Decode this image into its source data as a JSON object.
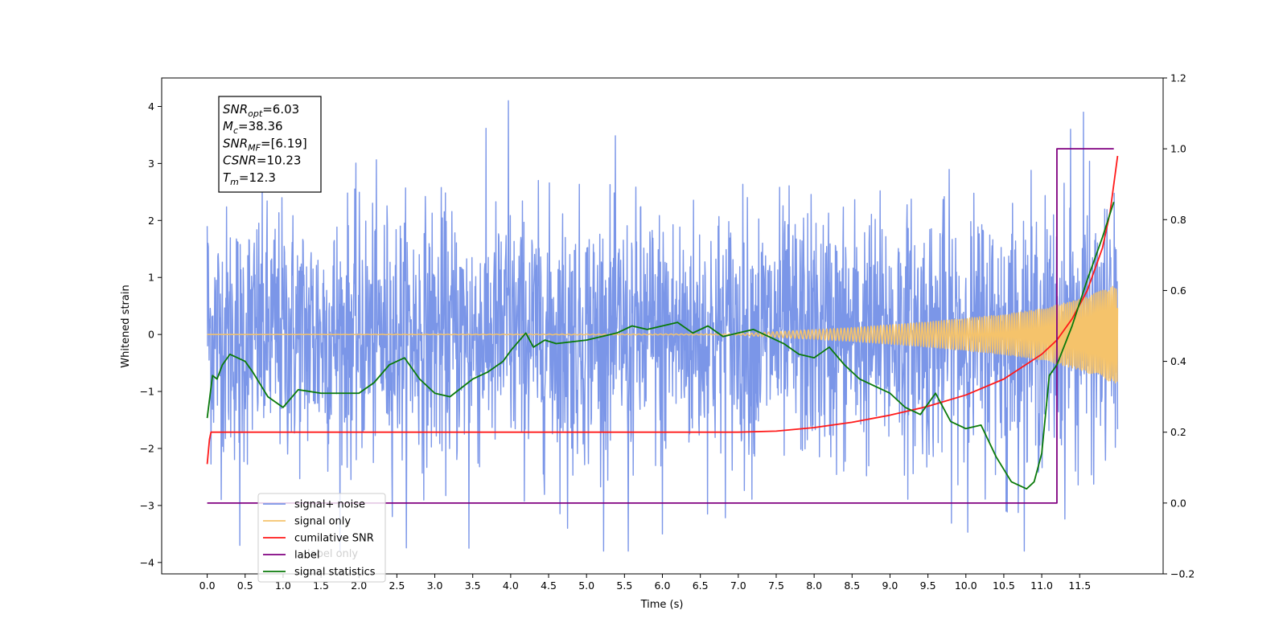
{
  "chart_data": {
    "type": "line",
    "xlabel": "Time (s)",
    "ylabel": "Whitened strain",
    "xlim": [
      -0.6,
      12.6
    ],
    "ylim_left": [
      -4.2,
      4.5
    ],
    "ylim_right": [
      -0.2,
      1.2
    ],
    "x_ticks": [
      "0.0",
      "0.5",
      "1.0",
      "1.5",
      "2.0",
      "2.5",
      "3.0",
      "3.5",
      "4.0",
      "4.5",
      "5.0",
      "5.5",
      "6.0",
      "6.5",
      "7.0",
      "7.5",
      "8.0",
      "8.5",
      "9.0",
      "9.5",
      "10.0",
      "10.5",
      "11.0",
      "11.5"
    ],
    "y_ticks_left": [
      "4",
      "3",
      "2",
      "1",
      "0",
      "−1",
      "−2",
      "−3",
      "−4"
    ],
    "y_ticks_right": [
      "1.2",
      "1.0",
      "0.8",
      "0.6",
      "0.4",
      "0.2",
      "0.0",
      "−0.2"
    ],
    "grid": false,
    "legend_position": "lower-left",
    "legend": [
      {
        "label": "signal+ noise",
        "color": "#7b96e8"
      },
      {
        "label": "signal only",
        "color": "#f5c36b"
      },
      {
        "label": "cumilative SNR",
        "color": "#ff1a1a"
      },
      {
        "label": "label",
        "color": "#800080"
      },
      {
        "label": "signal statistics",
        "color": "#0a7a0a"
      }
    ],
    "legend_bleed_text": [
      "label only"
    ],
    "annotation": {
      "lines": [
        {
          "base": "SNR",
          "sub": "opt",
          "value": "=6.03"
        },
        {
          "base": "M",
          "sub": "c",
          "value": "=38.36"
        },
        {
          "base": "SNR",
          "sub": "MF",
          "value": "=[6.19]"
        },
        {
          "base": "CSNR",
          "sub": "",
          "value": "=10.23"
        },
        {
          "base": "T",
          "sub": "m",
          "value": "=12.3"
        }
      ]
    },
    "series": [
      {
        "name": "signal+ noise",
        "axis": "left",
        "color": "#7b96e8",
        "kind": "noise",
        "x_range": [
          0.0,
          12.0
        ],
        "sample_count": 2400,
        "std": 1.2,
        "extremes": [
          [
            3.97,
            4.1
          ],
          [
            11.55,
            3.9
          ],
          [
            11.38,
            3.6
          ],
          [
            6.0,
            -3.5
          ],
          [
            5.55,
            -3.8
          ],
          [
            3.45,
            -3.75
          ],
          [
            10.53,
            -3.1
          ],
          [
            0.43,
            -3.7
          ],
          [
            4.75,
            -3.4
          ]
        ]
      },
      {
        "name": "signal only",
        "axis": "left",
        "color": "#f5c36b",
        "kind": "chirp",
        "x_range": [
          0.0,
          12.0
        ],
        "amplitude_envelope": [
          [
            0.0,
            0.0
          ],
          [
            7.0,
            0.01
          ],
          [
            7.5,
            0.05
          ],
          [
            8.5,
            0.12
          ],
          [
            9.5,
            0.22
          ],
          [
            10.5,
            0.35
          ],
          [
            11.0,
            0.45
          ],
          [
            11.5,
            0.62
          ],
          [
            11.95,
            0.85
          ]
        ],
        "frequency_hz_range": [
          10,
          45
        ]
      },
      {
        "name": "cumilative SNR",
        "axis": "right",
        "color": "#ff1a1a",
        "x": [
          0.0,
          0.03,
          0.05,
          1.0,
          2.0,
          3.0,
          4.0,
          5.0,
          6.0,
          7.0,
          7.5,
          8.0,
          8.5,
          9.0,
          9.5,
          10.0,
          10.5,
          11.0,
          11.2,
          11.4,
          11.6,
          11.8,
          11.9,
          11.95,
          12.0
        ],
        "values": [
          0.11,
          0.18,
          0.2,
          0.2,
          0.2,
          0.2,
          0.2,
          0.2,
          0.2,
          0.2,
          0.203,
          0.213,
          0.228,
          0.248,
          0.273,
          0.305,
          0.35,
          0.42,
          0.46,
          0.52,
          0.6,
          0.72,
          0.82,
          0.9,
          0.98
        ]
      },
      {
        "name": "label",
        "axis": "right",
        "color": "#800080",
        "x": [
          0.0,
          11.2,
          11.2,
          11.95
        ],
        "values": [
          0.0,
          0.0,
          1.0,
          1.0
        ]
      },
      {
        "name": "signal statistics",
        "axis": "right",
        "color": "#0a7a0a",
        "x": [
          0.0,
          0.07,
          0.13,
          0.2,
          0.3,
          0.5,
          0.6,
          0.8,
          1.0,
          1.2,
          1.5,
          2.0,
          2.2,
          2.4,
          2.6,
          2.8,
          3.0,
          3.2,
          3.5,
          3.7,
          3.9,
          4.0,
          4.2,
          4.3,
          4.45,
          4.6,
          5.0,
          5.4,
          5.6,
          5.8,
          6.2,
          6.4,
          6.6,
          6.8,
          7.0,
          7.2,
          7.4,
          7.6,
          7.8,
          8.0,
          8.2,
          8.4,
          8.6,
          8.8,
          9.0,
          9.2,
          9.4,
          9.6,
          9.8,
          10.0,
          10.2,
          10.4,
          10.6,
          10.8,
          10.9,
          11.0,
          11.1,
          11.2,
          11.4,
          11.6,
          11.8,
          11.95
        ],
        "values": [
          0.24,
          0.36,
          0.35,
          0.39,
          0.42,
          0.4,
          0.37,
          0.3,
          0.27,
          0.32,
          0.31,
          0.31,
          0.34,
          0.39,
          0.41,
          0.35,
          0.31,
          0.3,
          0.35,
          0.37,
          0.4,
          0.43,
          0.48,
          0.44,
          0.46,
          0.45,
          0.46,
          0.48,
          0.5,
          0.49,
          0.51,
          0.48,
          0.5,
          0.47,
          0.48,
          0.49,
          0.47,
          0.45,
          0.42,
          0.41,
          0.44,
          0.39,
          0.35,
          0.33,
          0.31,
          0.27,
          0.25,
          0.31,
          0.23,
          0.21,
          0.22,
          0.13,
          0.06,
          0.04,
          0.06,
          0.14,
          0.36,
          0.39,
          0.5,
          0.63,
          0.75,
          0.85
        ]
      }
    ]
  }
}
